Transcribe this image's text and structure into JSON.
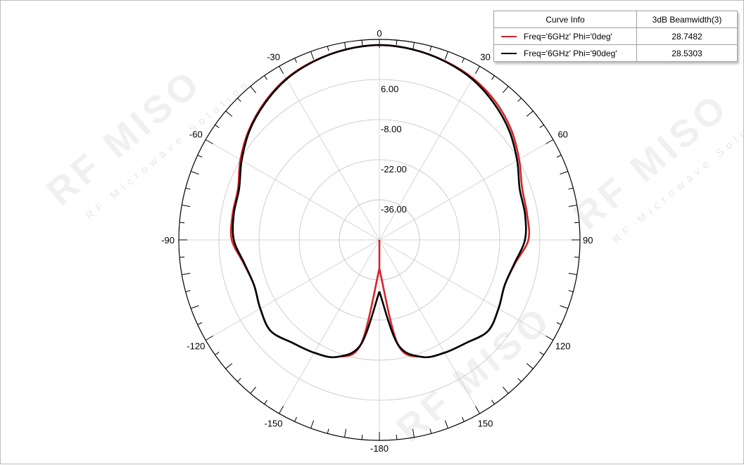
{
  "legend": {
    "header_curve": "Curve Info",
    "header_value": "3dB Beamwidth(3)",
    "rows": [
      {
        "label": "Freq='6GHz' Phi='0deg'",
        "value": "28.7482",
        "color": "#d8232a"
      },
      {
        "label": "Freq='6GHz' Phi='90deg'",
        "value": "28.5303",
        "color": "#000000"
      }
    ]
  },
  "chart_data": {
    "type": "polar-line",
    "angle_labels": [
      "0",
      "30",
      "60",
      "90",
      "120",
      "150",
      "-180",
      "-150",
      "-120",
      "-90",
      "-60",
      "-30"
    ],
    "angle_values": [
      0,
      30,
      60,
      90,
      120,
      150,
      180,
      -150,
      -120,
      -90,
      -60,
      -30
    ],
    "radial_labels": [
      "6.00",
      "-8.00",
      "-22.00",
      "-36.00"
    ],
    "radial_values": [
      6,
      -8,
      -22,
      -36
    ],
    "radial_range": [
      -50,
      20
    ],
    "series": [
      {
        "name": "Freq='6GHz' Phi='0deg'",
        "color": "#d8232a",
        "theta": [
          -180,
          -170,
          -160,
          -150,
          -140,
          -130,
          -120,
          -110,
          -100,
          -90,
          -80,
          -70,
          -60,
          -50,
          -40,
          -30,
          -20,
          -10,
          0,
          10,
          20,
          30,
          40,
          50,
          60,
          70,
          80,
          90,
          100,
          110,
          120,
          130,
          140,
          150,
          160,
          170,
          180
        ],
        "values": [
          -40,
          -13,
          -6.5,
          -4.5,
          -3,
          -0.5,
          -2,
          -3.5,
          -2,
          1.5,
          2,
          2.5,
          6,
          9.5,
          12.5,
          15,
          16.5,
          17.5,
          18,
          17.5,
          16.5,
          15.2,
          13,
          10,
          6.3,
          3,
          2.3,
          2,
          -2,
          -3.5,
          -2,
          -0.5,
          -3,
          -4.5,
          -6.5,
          -13,
          -40
        ]
      },
      {
        "name": "Freq='6GHz' Phi='90deg'",
        "color": "#000000",
        "theta": [
          -180,
          -170,
          -160,
          -150,
          -140,
          -130,
          -120,
          -110,
          -100,
          -90,
          -80,
          -70,
          -60,
          -50,
          -40,
          -30,
          -20,
          -10,
          0,
          10,
          20,
          30,
          40,
          50,
          60,
          70,
          80,
          90,
          100,
          110,
          120,
          130,
          140,
          150,
          160,
          170,
          180
        ],
        "values": [
          -32,
          -13,
          -6.5,
          -4.5,
          -3,
          -0.5,
          -2,
          -3.5,
          -2.2,
          0.8,
          1.6,
          2.1,
          5.5,
          9.2,
          12.2,
          14.8,
          16.4,
          17.5,
          18,
          17.5,
          16.4,
          14.8,
          12.2,
          9.2,
          5.5,
          2.1,
          1.6,
          0.8,
          -2.2,
          -3.5,
          -2,
          -0.5,
          -3,
          -4.5,
          -6.5,
          -13,
          -32
        ]
      }
    ]
  }
}
